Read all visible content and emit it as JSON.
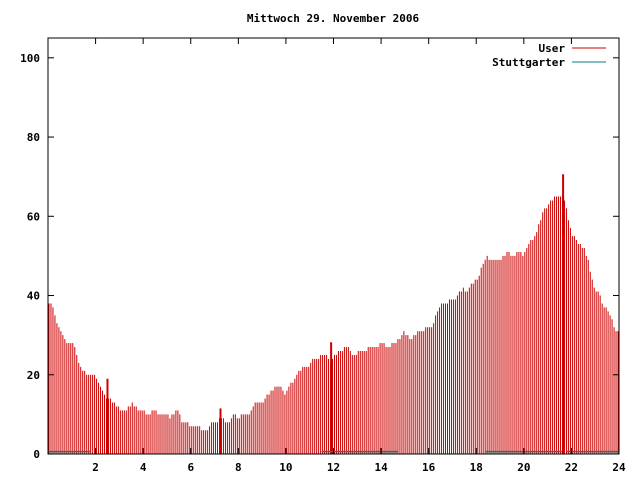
{
  "chart_data": {
    "type": "bar",
    "title": "Mittwoch 29. November 2006",
    "xlabel": "",
    "ylabel": "",
    "xlim": [
      0,
      24
    ],
    "ylim": [
      0,
      105
    ],
    "x_ticks": [
      2,
      4,
      6,
      8,
      10,
      12,
      14,
      16,
      18,
      20,
      22,
      24
    ],
    "x_tick_labels": [
      "2",
      "4",
      "6",
      "8",
      "10",
      "12",
      "14",
      "16",
      "18",
      "20",
      "22",
      "24"
    ],
    "y_ticks": [
      0,
      20,
      40,
      60,
      80,
      100
    ],
    "y_tick_labels": [
      "0",
      "20",
      "40",
      "60",
      "80",
      "100"
    ],
    "grid": false,
    "legend_position": "top-right",
    "series": [
      {
        "name": "User",
        "color": "#cc0000",
        "anchors": [
          [
            0,
            38
          ],
          [
            0.25,
            36
          ],
          [
            0.5,
            31
          ],
          [
            0.75,
            29
          ],
          [
            1.0,
            28
          ],
          [
            1.25,
            24
          ],
          [
            1.5,
            21
          ],
          [
            1.75,
            20
          ],
          [
            2.0,
            19
          ],
          [
            2.25,
            17
          ],
          [
            2.5,
            14
          ],
          [
            2.75,
            13
          ],
          [
            3.0,
            11
          ],
          [
            3.5,
            12
          ],
          [
            4.0,
            11
          ],
          [
            4.5,
            10
          ],
          [
            5.0,
            10
          ],
          [
            5.5,
            10
          ],
          [
            5.75,
            8
          ],
          [
            6.0,
            7
          ],
          [
            6.5,
            6
          ],
          [
            7.0,
            8
          ],
          [
            7.5,
            9
          ],
          [
            8.0,
            9
          ],
          [
            8.5,
            11
          ],
          [
            9.0,
            13
          ],
          [
            9.5,
            17
          ],
          [
            10.0,
            16
          ],
          [
            10.5,
            20
          ],
          [
            11.0,
            23
          ],
          [
            11.5,
            25
          ],
          [
            12.0,
            24
          ],
          [
            12.5,
            27
          ],
          [
            13.0,
            25
          ],
          [
            13.5,
            27
          ],
          [
            14.0,
            27
          ],
          [
            14.5,
            28
          ],
          [
            15.0,
            30
          ],
          [
            15.5,
            30
          ],
          [
            16.0,
            32
          ],
          [
            16.5,
            37
          ],
          [
            17.0,
            39
          ],
          [
            17.5,
            41
          ],
          [
            18.0,
            44
          ],
          [
            18.5,
            50
          ],
          [
            19.0,
            49
          ],
          [
            19.5,
            51
          ],
          [
            20.0,
            50
          ],
          [
            20.5,
            56
          ],
          [
            21.0,
            63
          ],
          [
            21.5,
            66
          ],
          [
            21.75,
            62
          ],
          [
            22.0,
            56
          ],
          [
            22.5,
            52
          ],
          [
            23.0,
            42
          ],
          [
            23.5,
            36
          ],
          [
            24.0,
            31
          ]
        ],
        "spikes": [
          {
            "x": 2.5,
            "value": 5
          },
          {
            "x": 7.25,
            "value": 3
          },
          {
            "x": 11.9,
            "value": 4
          },
          {
            "x": 21.65,
            "value": 7
          }
        ]
      },
      {
        "name": "Stuttgarter",
        "color": "#008080",
        "segments": [
          [
            0,
            1.8,
            0.6
          ],
          [
            11.5,
            14.7,
            0.6
          ],
          [
            18.4,
            21.6,
            0.6
          ],
          [
            21.8,
            24,
            0.6
          ]
        ]
      }
    ]
  }
}
